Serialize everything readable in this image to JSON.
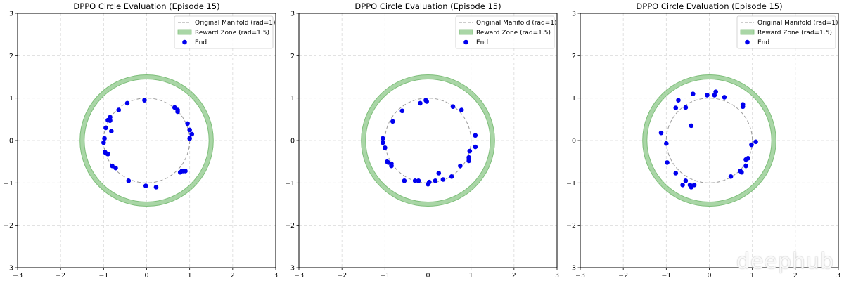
{
  "watermark": "deephub",
  "colors": {
    "ring_fill": "#a9d6a6",
    "ring_edge": "#7fbf7b",
    "manifold": "#9a9a9a",
    "points": "#0000ee",
    "grid": "#d9d9d9"
  },
  "chart_data": [
    {
      "type": "scatter",
      "title": "DPPO Circle Evaluation (Episode 15)",
      "xlim": [
        -3,
        3
      ],
      "ylim": [
        -3,
        3
      ],
      "xticks": [
        "−3",
        "−2",
        "−1",
        "0",
        "1",
        "2",
        "3"
      ],
      "yticks": [
        "−3",
        "−2",
        "−1",
        "0",
        "1",
        "2",
        "3"
      ],
      "grid": true,
      "legend_position": "top-right",
      "legend": [
        "Original Manifold (rad=1)",
        "Reward Zone (rad=1.5)",
        "End"
      ],
      "manifold_radius": 1,
      "reward_zone": {
        "inner": 1.45,
        "outer": 1.55
      },
      "points": [
        [
          -0.05,
          0.95
        ],
        [
          -0.45,
          0.88
        ],
        [
          -0.65,
          0.72
        ],
        [
          -0.85,
          0.55
        ],
        [
          -0.85,
          0.47
        ],
        [
          -0.9,
          0.48
        ],
        [
          -0.95,
          0.3
        ],
        [
          -0.82,
          0.22
        ],
        [
          -0.98,
          0.05
        ],
        [
          -1.0,
          -0.05
        ],
        [
          -0.97,
          -0.27
        ],
        [
          -0.95,
          -0.3
        ],
        [
          -0.9,
          -0.32
        ],
        [
          -0.8,
          -0.6
        ],
        [
          -0.72,
          -0.65
        ],
        [
          -0.42,
          -0.95
        ],
        [
          -0.02,
          -1.07
        ],
        [
          0.22,
          -1.1
        ],
        [
          0.65,
          0.78
        ],
        [
          0.72,
          0.72
        ],
        [
          0.72,
          0.68
        ],
        [
          0.95,
          0.4
        ],
        [
          1.0,
          0.25
        ],
        [
          1.05,
          0.15
        ],
        [
          1.0,
          0.05
        ],
        [
          0.9,
          -0.72
        ],
        [
          0.85,
          -0.72
        ],
        [
          0.78,
          -0.75
        ],
        [
          0.82,
          -0.72
        ]
      ]
    },
    {
      "type": "scatter",
      "title": "DPPO Circle Evaluation (Episode 15)",
      "xlim": [
        -3,
        3
      ],
      "ylim": [
        -3,
        3
      ],
      "xticks": [
        "−3",
        "−2",
        "−1",
        "0",
        "1",
        "2",
        "3"
      ],
      "yticks": [
        "−3",
        "−2",
        "−1",
        "0",
        "1",
        "2",
        "3"
      ],
      "grid": true,
      "legend_position": "top-right",
      "legend": [
        "Original Manifold (rad=1)",
        "Reward Zone (rad=1.5)",
        "End"
      ],
      "manifold_radius": 1,
      "reward_zone": {
        "inner": 1.45,
        "outer": 1.55
      },
      "points": [
        [
          -0.05,
          0.95
        ],
        [
          -0.03,
          0.92
        ],
        [
          -0.18,
          0.88
        ],
        [
          -0.6,
          0.7
        ],
        [
          -0.82,
          0.45
        ],
        [
          -1.05,
          0.05
        ],
        [
          -1.05,
          -0.05
        ],
        [
          -1.0,
          -0.17
        ],
        [
          -0.95,
          -0.5
        ],
        [
          -0.92,
          -0.52
        ],
        [
          -0.85,
          -0.55
        ],
        [
          -0.85,
          -0.6
        ],
        [
          -0.55,
          -0.95
        ],
        [
          -0.3,
          -0.95
        ],
        [
          -0.22,
          -0.95
        ],
        [
          0.0,
          -1.03
        ],
        [
          0.03,
          -0.98
        ],
        [
          0.17,
          -0.95
        ],
        [
          0.25,
          -0.77
        ],
        [
          0.35,
          -0.92
        ],
        [
          0.55,
          -0.85
        ],
        [
          0.75,
          -0.6
        ],
        [
          0.95,
          -0.4
        ],
        [
          0.95,
          -0.48
        ],
        [
          0.97,
          -0.25
        ],
        [
          1.1,
          -0.15
        ],
        [
          1.1,
          0.12
        ],
        [
          0.78,
          0.72
        ],
        [
          0.58,
          0.8
        ]
      ]
    },
    {
      "type": "scatter",
      "title": "DPPO Circle Evaluation (Episode 15)",
      "xlim": [
        -3,
        3
      ],
      "ylim": [
        -3,
        3
      ],
      "xticks": [
        "−3",
        "−2",
        "−1",
        "0",
        "1",
        "2",
        "3"
      ],
      "yticks": [
        "−3",
        "−2",
        "−1",
        "0",
        "1",
        "2",
        "3"
      ],
      "grid": true,
      "legend_position": "top-right",
      "legend": [
        "Original Manifold (rad=1)",
        "Reward Zone (rad=1.5)",
        "End"
      ],
      "manifold_radius": 1,
      "reward_zone": {
        "inner": 1.45,
        "outer": 1.55
      },
      "points": [
        [
          0.15,
          1.15
        ],
        [
          0.12,
          1.07
        ],
        [
          0.35,
          1.02
        ],
        [
          -0.05,
          1.07
        ],
        [
          -0.38,
          1.1
        ],
        [
          -0.72,
          0.95
        ],
        [
          -0.78,
          0.77
        ],
        [
          -0.55,
          0.78
        ],
        [
          -1.12,
          0.18
        ],
        [
          -1.0,
          -0.07
        ],
        [
          -0.42,
          0.35
        ],
        [
          -0.98,
          -0.52
        ],
        [
          -0.78,
          -0.77
        ],
        [
          -0.55,
          -0.95
        ],
        [
          -0.62,
          -1.05
        ],
        [
          -0.45,
          -1.05
        ],
        [
          -0.42,
          -1.1
        ],
        [
          -0.35,
          -1.05
        ],
        [
          0.5,
          -0.85
        ],
        [
          0.72,
          -0.72
        ],
        [
          0.75,
          -0.75
        ],
        [
          0.85,
          -0.45
        ],
        [
          0.9,
          -0.42
        ],
        [
          0.85,
          -0.6
        ],
        [
          0.98,
          -0.1
        ],
        [
          1.08,
          -0.03
        ],
        [
          0.78,
          0.85
        ],
        [
          0.78,
          0.8
        ]
      ]
    }
  ]
}
